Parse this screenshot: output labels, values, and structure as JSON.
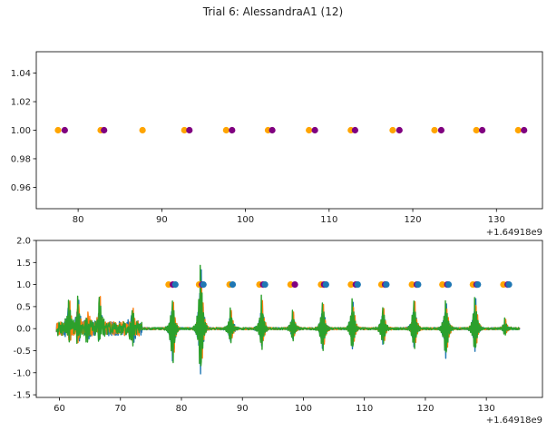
{
  "figure": {
    "title": "Trial 6: AlessandraA1 (12)",
    "background": "#ffffff"
  },
  "colors": {
    "orange_marker": "#ffa500",
    "purple_marker": "#800080",
    "blue_marker": "#1f77b4",
    "series_blue": "#1f77b4",
    "series_orange": "#ff7f0e",
    "series_green": "#2ca02c"
  },
  "chart_data": [
    {
      "type": "scatter",
      "title": "",
      "xlabel": "",
      "ylabel": "",
      "x_offset_label": "+1.64918e9",
      "xlim": [
        75,
        135.5
      ],
      "ylim": [
        0.945,
        1.055
      ],
      "xticks": [
        80,
        90,
        100,
        110,
        120,
        130
      ],
      "yticks": [
        0.96,
        0.98,
        1.0,
        1.02,
        1.04
      ],
      "ytick_labels": [
        "0.96",
        "0.98",
        "1.00",
        "1.02",
        "1.04"
      ],
      "grid": false,
      "series": [
        {
          "color": "orange",
          "x": [
            77.6,
            82.7,
            87.7,
            92.7,
            97.7,
            102.7,
            107.6,
            112.6,
            117.6,
            122.6,
            127.6,
            132.6
          ],
          "y": [
            1,
            1,
            1,
            1,
            1,
            1,
            1,
            1,
            1,
            1,
            1,
            1
          ]
        },
        {
          "color": "purple",
          "x": [
            78.4,
            83.1,
            93.3,
            98.4,
            103.2,
            108.3,
            113.1,
            118.4,
            123.4,
            128.3,
            133.3
          ],
          "y": [
            1,
            1,
            1,
            1,
            1,
            1,
            1,
            1,
            1,
            1,
            1
          ]
        }
      ]
    },
    {
      "type": "line",
      "title": "",
      "xlabel": "",
      "ylabel": "",
      "x_offset_label": "+1.64918e9",
      "xlim": [
        56.2,
        139.2
      ],
      "ylim": [
        -1.56,
        2.0
      ],
      "xticks": [
        60,
        70,
        80,
        90,
        100,
        110,
        120,
        130
      ],
      "yticks": [
        -1.5,
        -1.0,
        -0.5,
        0.0,
        0.5,
        1.0,
        1.5,
        2.0
      ],
      "ytick_labels": [
        "-1.5",
        "-1.0",
        "-0.5",
        "0.0",
        "0.5",
        "1.0",
        "1.5",
        "2.0"
      ],
      "grid": false,
      "signal": {
        "x_range": [
          59.5,
          135.5
        ],
        "noisy_until": 73.5,
        "series": [
          {
            "color": "blue"
          },
          {
            "color": "orange"
          },
          {
            "color": "green"
          }
        ],
        "spikes": [
          {
            "x": 61.6,
            "max": 0.9,
            "min": -0.4
          },
          {
            "x": 63.1,
            "max": 0.95,
            "min": -0.35
          },
          {
            "x": 64.6,
            "max": 0.45,
            "min": -0.35
          },
          {
            "x": 66.6,
            "max": 0.95,
            "min": -0.35
          },
          {
            "x": 72.0,
            "max": 0.5,
            "min": -0.4
          },
          {
            "x": 78.6,
            "max": 0.8,
            "min": -1.05
          },
          {
            "x": 83.2,
            "max": 1.85,
            "min": -1.4
          },
          {
            "x": 88.1,
            "max": 0.55,
            "min": -0.45
          },
          {
            "x": 93.2,
            "max": 0.85,
            "min": -0.6
          },
          {
            "x": 98.3,
            "max": 0.5,
            "min": -0.35
          },
          {
            "x": 103.2,
            "max": 0.75,
            "min": -0.7
          },
          {
            "x": 108.1,
            "max": 0.85,
            "min": -0.65
          },
          {
            "x": 113.1,
            "max": 0.6,
            "min": -0.5
          },
          {
            "x": 118.2,
            "max": 0.8,
            "min": -0.6
          },
          {
            "x": 123.4,
            "max": 0.8,
            "min": -0.9
          },
          {
            "x": 128.2,
            "max": 0.9,
            "min": -0.7
          },
          {
            "x": 133.1,
            "max": 0.25,
            "min": -0.2
          }
        ]
      },
      "markers": [
        {
          "color": "orange",
          "x": [
            77.9,
            82.9,
            87.9,
            92.8,
            97.9,
            102.9,
            107.8,
            112.8,
            117.8,
            122.8,
            127.8,
            132.8
          ],
          "y": [
            1,
            1,
            1,
            1,
            1,
            1,
            1,
            1,
            1,
            1,
            1,
            1
          ]
        },
        {
          "color": "purple",
          "x": [
            78.6,
            83.4,
            93.4,
            98.6,
            103.4,
            108.6,
            113.4,
            118.6,
            123.6,
            128.4,
            133.5
          ],
          "y": [
            1,
            1,
            1,
            1,
            1,
            1,
            1,
            1,
            1,
            1,
            1
          ]
        },
        {
          "color": "blue",
          "x": [
            79.0,
            83.6,
            88.4,
            93.7,
            103.7,
            108.9,
            113.6,
            118.8,
            123.8,
            128.6,
            133.7
          ],
          "y": [
            1,
            1,
            1,
            1,
            1,
            1,
            1,
            1,
            1,
            1,
            1
          ]
        }
      ]
    }
  ]
}
